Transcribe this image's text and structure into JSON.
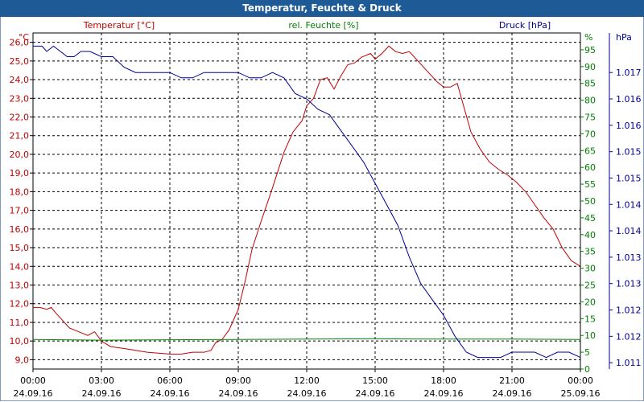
{
  "window": {
    "title": "Temperatur, Feuchte & Druck"
  },
  "colors": {
    "temperature": "#c00000",
    "humidity": "#008000",
    "pressure": "#000099",
    "axis": "#000000",
    "grid": "#000000",
    "titlebar": "#1e5a96"
  },
  "chart_data": {
    "type": "line",
    "title": "Temperatur, Feuchte & Druck",
    "grid": true,
    "x_ticks": [
      {
        "h": 0,
        "time": "00:00",
        "date": "24.09.16"
      },
      {
        "h": 3,
        "time": "03:00",
        "date": "24.09.16"
      },
      {
        "h": 6,
        "time": "06:00",
        "date": "24.09.16"
      },
      {
        "h": 9,
        "time": "09:00",
        "date": "24.09.16"
      },
      {
        "h": 12,
        "time": "12:00",
        "date": "24.09.16"
      },
      {
        "h": 15,
        "time": "15:00",
        "date": "24.09.16"
      },
      {
        "h": 18,
        "time": "18:00",
        "date": "24.09.16"
      },
      {
        "h": 21,
        "time": "21:00",
        "date": "24.09.16"
      },
      {
        "h": 24,
        "time": "00:00",
        "date": "25.09.16"
      }
    ],
    "xlim": [
      0,
      24
    ],
    "axes": {
      "left": {
        "unit": "°C",
        "label": "Temperatur [°C]",
        "ylim": [
          8.5,
          26.5
        ],
        "ticks": [
          "9,0",
          "10,0",
          "11,0",
          "12,0",
          "13,0",
          "14,0",
          "15,0",
          "16,0",
          "17,0",
          "18,0",
          "19,0",
          "20,0",
          "21,0",
          "22,0",
          "23,0",
          "24,0",
          "25,0",
          "26,0"
        ]
      },
      "mid": {
        "unit": "%",
        "label": "rel. Feuchte [%]",
        "ylim": [
          0,
          100
        ],
        "ticks": [
          "0",
          "5",
          "10",
          "15",
          "20",
          "25",
          "30",
          "35",
          "40",
          "45",
          "50",
          "55",
          "60",
          "65",
          "70",
          "75",
          "80",
          "85",
          "90",
          "95"
        ]
      },
      "right": {
        "unit": "hPa",
        "label": "Druck [hPa]",
        "ylim": [
          1010.88,
          1017.25
        ],
        "ticks": [
          "1.011",
          "1.012",
          "1.012",
          "1.013",
          "1.013",
          "1.014",
          "1.014",
          "1.015",
          "1.015",
          "1.016",
          "1.016",
          "1.017"
        ]
      }
    },
    "series": [
      {
        "name": "Temperatur [°C]",
        "axis": "left",
        "x": [
          0,
          0.3,
          0.6,
          0.8,
          1,
          1.3,
          1.6,
          2,
          2.4,
          2.7,
          3,
          3.4,
          4,
          4.5,
          5,
          5.5,
          6,
          6.5,
          7,
          7.5,
          7.8,
          8,
          8.3,
          8.6,
          9,
          9.3,
          9.6,
          10,
          10.5,
          11,
          11.4,
          11.8,
          12,
          12.3,
          12.6,
          12.9,
          13.2,
          13.5,
          13.8,
          14.1,
          14.4,
          14.8,
          15,
          15.3,
          15.6,
          15.9,
          16.2,
          16.5,
          16.8,
          17.1,
          17.4,
          17.7,
          18,
          18.3,
          18.6,
          18.9,
          19.2,
          19.6,
          20,
          20.4,
          20.8,
          21.2,
          21.6,
          22,
          22.4,
          22.8,
          23.2,
          23.6,
          24
        ],
        "values": [
          11.8,
          11.8,
          11.7,
          11.8,
          11.5,
          11.1,
          10.7,
          10.5,
          10.3,
          10.5,
          10.0,
          9.7,
          9.6,
          9.5,
          9.4,
          9.35,
          9.3,
          9.3,
          9.4,
          9.4,
          9.5,
          9.9,
          10.1,
          10.6,
          11.7,
          13.2,
          14.9,
          16.4,
          18.2,
          20.1,
          21.2,
          21.8,
          22.6,
          23.0,
          24.0,
          24.1,
          23.5,
          24.2,
          24.8,
          24.9,
          25.2,
          25.4,
          25.1,
          25.4,
          25.8,
          25.5,
          25.4,
          25.5,
          25.1,
          24.7,
          24.3,
          23.9,
          23.6,
          23.6,
          23.8,
          22.5,
          21.2,
          20.3,
          19.6,
          19.2,
          18.9,
          18.5,
          18.0,
          17.3,
          16.6,
          16.0,
          15.0,
          14.3,
          14.0
        ]
      },
      {
        "name": "rel. Feuchte [%]",
        "axis": "mid",
        "x": [
          0,
          3,
          6,
          9,
          12,
          15,
          18,
          21,
          24
        ],
        "values": [
          8.8,
          8.6,
          8.7,
          8.8,
          8.9,
          9.0,
          8.9,
          8.9,
          8.8
        ]
      },
      {
        "name": "Druck [hPa]",
        "axis": "right",
        "x": [
          0,
          0.4,
          0.6,
          0.9,
          1.2,
          1.5,
          1.8,
          2.1,
          2.5,
          3,
          3.5,
          4,
          4.5,
          5,
          5.5,
          6,
          6.5,
          7,
          7.5,
          8,
          8.5,
          9,
          9.5,
          10,
          10.5,
          11,
          11.5,
          12,
          12.5,
          13,
          13.5,
          14,
          14.5,
          15,
          15.5,
          16,
          16.5,
          17,
          17.5,
          18,
          18.5,
          19,
          19.5,
          20,
          20.5,
          21,
          21.5,
          22,
          22.5,
          23,
          23.5,
          24
        ],
        "values": [
          1017.0,
          1017.0,
          1016.9,
          1017.0,
          1016.9,
          1016.8,
          1016.8,
          1016.9,
          1016.9,
          1016.8,
          1016.8,
          1016.6,
          1016.5,
          1016.5,
          1016.5,
          1016.5,
          1016.4,
          1016.4,
          1016.5,
          1016.5,
          1016.5,
          1016.5,
          1016.4,
          1016.4,
          1016.5,
          1016.4,
          1016.1,
          1016.0,
          1015.8,
          1015.7,
          1015.4,
          1015.1,
          1014.8,
          1014.4,
          1014.0,
          1013.6,
          1013.0,
          1012.5,
          1012.2,
          1011.9,
          1011.5,
          1011.2,
          1011.1,
          1011.1,
          1011.1,
          1011.2,
          1011.2,
          1011.2,
          1011.1,
          1011.2,
          1011.2,
          1011.1
        ]
      }
    ]
  }
}
